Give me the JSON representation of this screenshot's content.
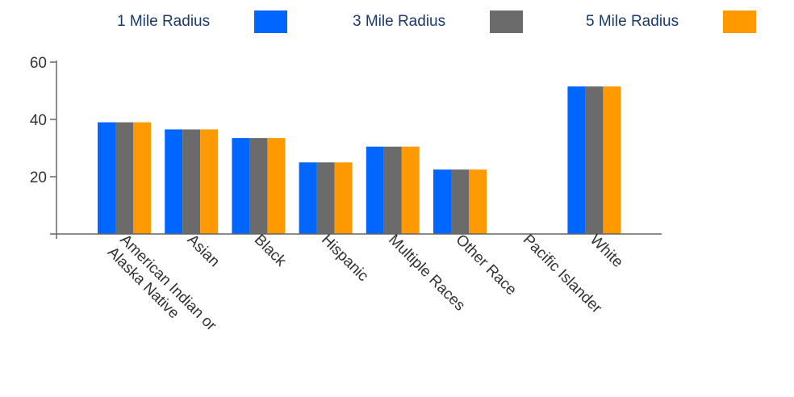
{
  "chart_data": {
    "type": "bar",
    "categories": [
      "American Indian or Alaska Native",
      "Asian",
      "Black",
      "Hispanic",
      "Multiple Races",
      "Other Race",
      "Pacific Islander",
      "White"
    ],
    "category_lines": [
      [
        "American Indian or",
        "Alaska Native"
      ],
      [
        "Asian"
      ],
      [
        "Black"
      ],
      [
        "Hispanic"
      ],
      [
        "Multiple Races"
      ],
      [
        "Other Race"
      ],
      [
        "Pacific Islander"
      ],
      [
        "White"
      ]
    ],
    "series": [
      {
        "name": "1 Mile Radius",
        "color": "#0066ff",
        "values": [
          39,
          36.5,
          33.5,
          25,
          30.5,
          22.5,
          0,
          51.5
        ]
      },
      {
        "name": "3 Mile Radius",
        "color": "#6b6b6b",
        "values": [
          39,
          36.5,
          33.5,
          25,
          30.5,
          22.5,
          0,
          51.5
        ]
      },
      {
        "name": "5 Mile Radius",
        "color": "#ff9900",
        "values": [
          39,
          36.5,
          33.5,
          25,
          30.5,
          22.5,
          0,
          51.5
        ]
      }
    ],
    "yticks": [
      20,
      40,
      60
    ],
    "ylim": [
      0,
      60
    ],
    "legend_position": "top",
    "grid": false
  }
}
